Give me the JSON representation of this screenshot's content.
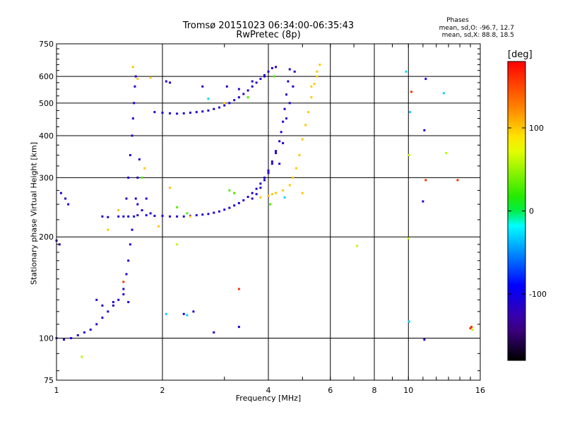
{
  "chart_data": {
    "type": "scatter",
    "title": "Tromsø 20151023 06:34:00-06:35:43",
    "subtitle": "RwPretec (8p)",
    "xlabel": "Frequency [MHz]",
    "ylabel": "Stationary phase Virtual Height [km]",
    "x_scale": "log",
    "y_scale": "log",
    "xlim": [
      1,
      16
    ],
    "ylim": [
      75,
      750
    ],
    "x_ticks": [
      "1",
      "2",
      "4",
      "6",
      "8",
      "10",
      "16"
    ],
    "y_ticks": [
      "75",
      "100",
      "200",
      "300",
      "400",
      "500",
      "600",
      "750"
    ],
    "grid": true,
    "phase_stats": {
      "heading": "Phases",
      "line_O": "mean, sd,O: -96.7, 12.7",
      "line_X": "mean, sd,X:  88.8, 18.5"
    },
    "colorbar": {
      "label": "[deg]",
      "ticks": [
        "100",
        "0",
        "-100"
      ],
      "range": [
        -180,
        180
      ]
    },
    "series": [
      {
        "phase_deg": -110,
        "points": [
          [
            1.0,
            100
          ],
          [
            1.05,
            99
          ],
          [
            1.1,
            100
          ],
          [
            1.15,
            102
          ],
          [
            1.2,
            104
          ],
          [
            1.25,
            106
          ],
          [
            1.3,
            110
          ],
          [
            1.35,
            115
          ],
          [
            1.4,
            120
          ],
          [
            1.45,
            125
          ],
          [
            1.5,
            130
          ],
          [
            1.55,
            140
          ],
          [
            1.58,
            155
          ],
          [
            1.6,
            170
          ],
          [
            1.62,
            190
          ],
          [
            1.64,
            210
          ],
          [
            1.66,
            230
          ],
          [
            1.68,
            260
          ],
          [
            1.7,
            300
          ],
          [
            1.72,
            340
          ]
        ]
      },
      {
        "phase_deg": -110,
        "points": [
          [
            1.55,
            230
          ],
          [
            1.58,
            260
          ],
          [
            1.6,
            300
          ],
          [
            1.62,
            350
          ],
          [
            1.64,
            400
          ],
          [
            1.65,
            450
          ],
          [
            1.66,
            500
          ],
          [
            1.67,
            560
          ],
          [
            1.68,
            600
          ],
          [
            1.7,
            250
          ],
          [
            1.75,
            240
          ],
          [
            1.8,
            260
          ],
          [
            1.85,
            235
          ]
        ]
      },
      {
        "phase_deg": -110,
        "points": [
          [
            1.35,
            230
          ],
          [
            1.4,
            229
          ],
          [
            1.5,
            230
          ],
          [
            1.6,
            230
          ],
          [
            1.7,
            232
          ],
          [
            1.8,
            232
          ],
          [
            1.9,
            231
          ],
          [
            2.0,
            231
          ],
          [
            2.1,
            230
          ],
          [
            2.2,
            230
          ],
          [
            2.3,
            230
          ],
          [
            2.4,
            231
          ],
          [
            2.5,
            232
          ],
          [
            2.6,
            233
          ],
          [
            2.7,
            234
          ],
          [
            2.8,
            236
          ],
          [
            2.9,
            238
          ],
          [
            3.0,
            241
          ],
          [
            3.1,
            244
          ],
          [
            3.2,
            248
          ],
          [
            3.3,
            252
          ],
          [
            3.4,
            257
          ],
          [
            3.5,
            263
          ],
          [
            3.6,
            270
          ],
          [
            3.7,
            278
          ],
          [
            3.8,
            288
          ],
          [
            3.9,
            300
          ],
          [
            4.0,
            315
          ],
          [
            4.1,
            335
          ],
          [
            4.2,
            360
          ]
        ]
      },
      {
        "phase_deg": -110,
        "points": [
          [
            3.6,
            260
          ],
          [
            3.7,
            268
          ],
          [
            3.8,
            280
          ],
          [
            3.9,
            295
          ],
          [
            4.0,
            310
          ],
          [
            4.1,
            330
          ],
          [
            4.2,
            355
          ],
          [
            4.3,
            385
          ],
          [
            4.35,
            410
          ],
          [
            4.4,
            440
          ],
          [
            4.45,
            480
          ],
          [
            4.5,
            530
          ],
          [
            4.55,
            580
          ],
          [
            4.6,
            630
          ]
        ]
      },
      {
        "phase_deg": -110,
        "points": [
          [
            4.3,
            330
          ],
          [
            4.4,
            380
          ],
          [
            4.5,
            450
          ],
          [
            4.6,
            500
          ],
          [
            4.7,
            560
          ],
          [
            4.75,
            620
          ]
        ]
      },
      {
        "phase_deg": -110,
        "points": [
          [
            1.9,
            470
          ],
          [
            2.0,
            468
          ],
          [
            2.1,
            466
          ],
          [
            2.2,
            465
          ],
          [
            2.3,
            466
          ],
          [
            2.4,
            468
          ],
          [
            2.5,
            470
          ],
          [
            2.6,
            472
          ],
          [
            2.7,
            475
          ],
          [
            2.8,
            480
          ],
          [
            2.9,
            485
          ],
          [
            3.0,
            492
          ],
          [
            3.1,
            500
          ],
          [
            3.2,
            510
          ],
          [
            3.3,
            520
          ],
          [
            3.4,
            532
          ],
          [
            3.5,
            545
          ],
          [
            3.6,
            560
          ],
          [
            3.7,
            575
          ],
          [
            3.8,
            590
          ],
          [
            3.9,
            605
          ],
          [
            4.0,
            620
          ],
          [
            4.1,
            635
          ]
        ]
      },
      {
        "phase_deg": -110,
        "points": [
          [
            1.03,
            270
          ],
          [
            1.06,
            260
          ],
          [
            1.08,
            250
          ],
          [
            1.0,
            195
          ],
          [
            1.02,
            190
          ],
          [
            2.05,
            580
          ],
          [
            2.1,
            575
          ],
          [
            2.6,
            560
          ],
          [
            3.05,
            560
          ],
          [
            3.3,
            550
          ],
          [
            3.6,
            580
          ],
          [
            3.9,
            600
          ],
          [
            4.2,
            640
          ]
        ]
      },
      {
        "phase_deg": -110,
        "points": [
          [
            1.3,
            130
          ],
          [
            1.35,
            125
          ],
          [
            1.45,
            128
          ],
          [
            1.55,
            135
          ],
          [
            1.6,
            128
          ],
          [
            2.3,
            118
          ],
          [
            2.45,
            120
          ],
          [
            3.3,
            108
          ],
          [
            2.8,
            104
          ],
          [
            11.1,
            99
          ],
          [
            11.0,
            255
          ],
          [
            11.1,
            415
          ],
          [
            11.2,
            590
          ]
        ]
      },
      {
        "phase_deg": 100,
        "points": [
          [
            4.2,
            270
          ],
          [
            4.4,
            275
          ],
          [
            4.6,
            285
          ],
          [
            4.7,
            300
          ],
          [
            4.8,
            320
          ],
          [
            4.9,
            350
          ],
          [
            5.0,
            390
          ],
          [
            5.1,
            430
          ],
          [
            5.2,
            470
          ],
          [
            5.3,
            520
          ],
          [
            5.4,
            570
          ],
          [
            5.5,
            620
          ],
          [
            5.6,
            650
          ],
          [
            5.0,
            270
          ],
          [
            5.3,
            560
          ],
          [
            5.5,
            600
          ]
        ]
      },
      {
        "phase_deg": 100,
        "points": [
          [
            3.8,
            262
          ],
          [
            4.0,
            265
          ],
          [
            4.1,
            268
          ],
          [
            1.65,
            640
          ],
          [
            1.85,
            595
          ],
          [
            1.5,
            240
          ],
          [
            1.95,
            215
          ],
          [
            1.78,
            320
          ],
          [
            1.4,
            210
          ],
          [
            1.7,
            590
          ],
          [
            2.1,
            280
          ],
          [
            2.4,
            230
          ],
          [
            3.2,
            270
          ],
          [
            3.0,
            500
          ]
        ]
      },
      {
        "phase_deg": 30,
        "points": [
          [
            3.1,
            275
          ],
          [
            3.2,
            270
          ],
          [
            2.2,
            245
          ],
          [
            2.35,
            235
          ],
          [
            1.75,
            300
          ],
          [
            4.05,
            250
          ],
          [
            4.15,
            600
          ],
          [
            3.5,
            520
          ]
        ]
      },
      {
        "phase_deg": -30,
        "points": [
          [
            2.05,
            118
          ],
          [
            2.35,
            117
          ],
          [
            4.45,
            262
          ],
          [
            10.05,
            112
          ],
          [
            10.1,
            470
          ],
          [
            9.85,
            620
          ],
          [
            12.6,
            535
          ],
          [
            2.7,
            515
          ]
        ]
      },
      {
        "phase_deg": 160,
        "points": [
          [
            1.55,
            147
          ],
          [
            3.3,
            140
          ],
          [
            15.0,
            107
          ],
          [
            15.1,
            108
          ],
          [
            11.2,
            295
          ],
          [
            13.8,
            295
          ],
          [
            10.2,
            540
          ]
        ]
      },
      {
        "phase_deg": 60,
        "points": [
          [
            12.8,
            355
          ],
          [
            10.05,
            350
          ],
          [
            10.0,
            198
          ],
          [
            7.15,
            188
          ],
          [
            15.2,
            106
          ],
          [
            1.18,
            88
          ],
          [
            2.2,
            190
          ]
        ]
      }
    ]
  }
}
